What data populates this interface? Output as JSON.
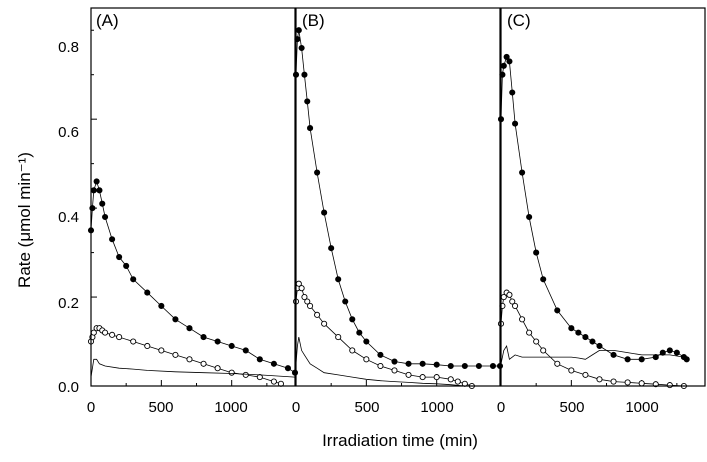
{
  "chart_data": {
    "type": "line",
    "xlabel": "Irradiation time (min)",
    "ylabel": "Rate (μmol min⁻¹)",
    "ylim": [
      0,
      0.85
    ],
    "y_ticks": [
      "0.0",
      "0.2",
      "0.4",
      "0.6",
      "0.8"
    ],
    "x_ticks": [
      "0",
      "500",
      "1000"
    ],
    "panels": [
      {
        "label": "(A)",
        "xlim": [
          0,
          1450
        ],
        "series": [
          {
            "marker": "filled-circle",
            "x": [
              0,
              10,
              20,
              40,
              60,
              80,
              100,
              150,
              200,
              250,
              300,
              400,
              500,
              600,
              700,
              800,
              900,
              1000,
              1100,
              1200,
              1300,
              1400,
              1450
            ],
            "y": [
              0.35,
              0.4,
              0.44,
              0.46,
              0.44,
              0.41,
              0.38,
              0.33,
              0.29,
              0.27,
              0.24,
              0.21,
              0.18,
              0.15,
              0.13,
              0.11,
              0.1,
              0.09,
              0.08,
              0.06,
              0.05,
              0.04,
              0.03
            ]
          },
          {
            "marker": "open-circle",
            "x": [
              0,
              10,
              20,
              40,
              60,
              80,
              100,
              150,
              200,
              300,
              400,
              500,
              600,
              700,
              800,
              900,
              1000,
              1100,
              1200,
              1300,
              1350
            ],
            "y": [
              0.1,
              0.11,
              0.12,
              0.13,
              0.13,
              0.125,
              0.12,
              0.115,
              0.11,
              0.1,
              0.09,
              0.08,
              0.07,
              0.06,
              0.05,
              0.04,
              0.03,
              0.025,
              0.02,
              0.01,
              0.005
            ]
          },
          {
            "marker": "none",
            "x": [
              0,
              10,
              20,
              40,
              60,
              100,
              200,
              300,
              400,
              600,
              800,
              1000,
              1200,
              1450
            ],
            "y": [
              0.02,
              0.04,
              0.06,
              0.06,
              0.05,
              0.045,
              0.04,
              0.038,
              0.035,
              0.032,
              0.03,
              0.028,
              0.025,
              0.02
            ]
          }
        ]
      },
      {
        "label": "(B)",
        "xlim": [
          0,
          1450
        ],
        "series": [
          {
            "marker": "filled-circle",
            "x": [
              0,
              10,
              20,
              40,
              60,
              80,
              100,
              150,
              200,
              250,
              300,
              350,
              400,
              450,
              500,
              600,
              700,
              800,
              900,
              1000,
              1100,
              1200,
              1300,
              1400,
              1450
            ],
            "y": [
              0.7,
              0.78,
              0.8,
              0.76,
              0.7,
              0.64,
              0.58,
              0.48,
              0.39,
              0.31,
              0.24,
              0.19,
              0.15,
              0.12,
              0.1,
              0.07,
              0.055,
              0.05,
              0.05,
              0.048,
              0.045,
              0.045,
              0.045,
              0.045,
              0.045
            ]
          },
          {
            "marker": "open-circle",
            "x": [
              0,
              10,
              20,
              40,
              60,
              80,
              100,
              150,
              200,
              300,
              400,
              500,
              600,
              700,
              800,
              900,
              1000,
              1100,
              1150,
              1200,
              1250
            ],
            "y": [
              0.19,
              0.22,
              0.23,
              0.22,
              0.2,
              0.19,
              0.18,
              0.16,
              0.14,
              0.11,
              0.08,
              0.06,
              0.045,
              0.035,
              0.025,
              0.02,
              0.02,
              0.015,
              0.01,
              0.005,
              0.0
            ]
          },
          {
            "marker": "none",
            "x": [
              0,
              10,
              20,
              40,
              60,
              100,
              150,
              200,
              300,
              400,
              500,
              600,
              700,
              800,
              900,
              1000,
              1100,
              1200
            ],
            "y": [
              0.05,
              0.09,
              0.11,
              0.08,
              0.07,
              0.05,
              0.04,
              0.03,
              0.025,
              0.02,
              0.015,
              0.012,
              0.01,
              0.008,
              0.006,
              0.005,
              0.003,
              0.0
            ]
          }
        ]
      },
      {
        "label": "(C)",
        "xlim": [
          0,
          1450
        ],
        "series": [
          {
            "marker": "filled-circle",
            "x": [
              0,
              10,
              20,
              40,
              60,
              80,
              100,
              150,
              200,
              250,
              300,
              400,
              500,
              550,
              600,
              650,
              700,
              800,
              900,
              1000,
              1100,
              1150,
              1200,
              1250,
              1300,
              1320
            ],
            "y": [
              0.6,
              0.7,
              0.72,
              0.74,
              0.73,
              0.66,
              0.59,
              0.48,
              0.38,
              0.3,
              0.24,
              0.17,
              0.13,
              0.12,
              0.11,
              0.1,
              0.09,
              0.07,
              0.06,
              0.06,
              0.065,
              0.075,
              0.08,
              0.075,
              0.065,
              0.06
            ]
          },
          {
            "marker": "open-circle",
            "x": [
              0,
              10,
              20,
              40,
              60,
              80,
              100,
              150,
              200,
              250,
              300,
              400,
              500,
              600,
              700,
              800,
              900,
              1000,
              1100,
              1200,
              1300
            ],
            "y": [
              0.14,
              0.18,
              0.2,
              0.21,
              0.205,
              0.19,
              0.18,
              0.15,
              0.12,
              0.1,
              0.08,
              0.05,
              0.035,
              0.025,
              0.015,
              0.01,
              0.008,
              0.006,
              0.004,
              0.002,
              0.0
            ]
          },
          {
            "marker": "none",
            "x": [
              0,
              20,
              40,
              60,
              100,
              150,
              200,
              300,
              400,
              500,
              550,
              600,
              650,
              700,
              800,
              900,
              1000,
              1100,
              1200,
              1300
            ],
            "y": [
              0.05,
              0.08,
              0.09,
              0.06,
              0.07,
              0.065,
              0.065,
              0.065,
              0.065,
              0.065,
              0.063,
              0.06,
              0.07,
              0.08,
              0.08,
              0.075,
              0.07,
              0.07,
              0.07,
              0.065
            ]
          }
        ]
      }
    ]
  }
}
